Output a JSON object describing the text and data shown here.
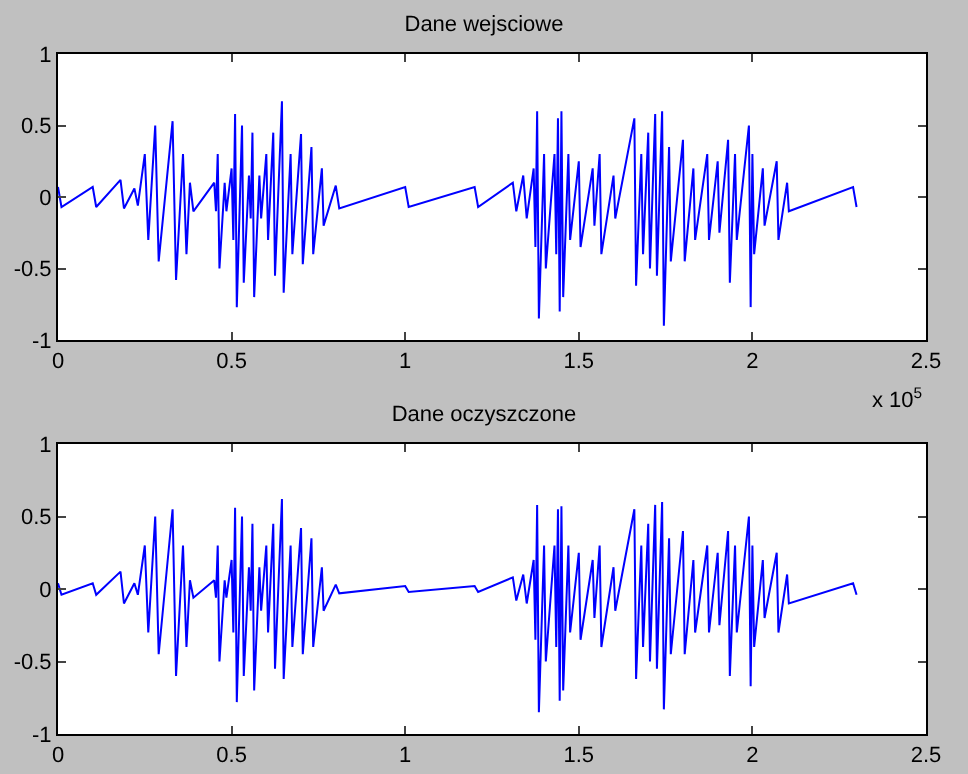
{
  "chart_data": [
    {
      "type": "line",
      "title": "Dane wejsciowe",
      "xlim": [
        0,
        2.5
      ],
      "xticks": [
        0,
        0.5,
        1,
        1.5,
        2,
        2.5
      ],
      "ylim": [
        -1,
        1
      ],
      "yticks": [
        -1,
        -0.5,
        0,
        0.5,
        1
      ],
      "annotations": [
        "x 10$^{5}$"
      ],
      "x": [
        0,
        0.01,
        0.1,
        0.11,
        0.18,
        0.19,
        0.22,
        0.23,
        0.25,
        0.26,
        0.28,
        0.29,
        0.33,
        0.34,
        0.36,
        0.37,
        0.38,
        0.39,
        0.45,
        0.455,
        0.46,
        0.465,
        0.48,
        0.485,
        0.5,
        0.505,
        0.51,
        0.515,
        0.53,
        0.535,
        0.55,
        0.555,
        0.56,
        0.565,
        0.58,
        0.585,
        0.6,
        0.605,
        0.62,
        0.625,
        0.645,
        0.65,
        0.67,
        0.675,
        0.7,
        0.705,
        0.73,
        0.735,
        0.76,
        0.765,
        0.8,
        0.81,
        1.0,
        1.01,
        1.2,
        1.21,
        1.31,
        1.32,
        1.34,
        1.35,
        1.37,
        1.375,
        1.38,
        1.385,
        1.4,
        1.405,
        1.43,
        1.435,
        1.44,
        1.445,
        1.45,
        1.455,
        1.47,
        1.475,
        1.5,
        1.505,
        1.54,
        1.545,
        1.56,
        1.565,
        1.6,
        1.605,
        1.66,
        1.665,
        1.68,
        1.685,
        1.7,
        1.705,
        1.72,
        1.725,
        1.74,
        1.745,
        1.76,
        1.765,
        1.8,
        1.805,
        1.83,
        1.835,
        1.87,
        1.875,
        1.9,
        1.905,
        1.93,
        1.935,
        1.95,
        1.955,
        1.99,
        1.995,
        2.0,
        2.005,
        2.03,
        2.035,
        2.07,
        2.075,
        2.1,
        2.105,
        2.29,
        2.3
      ],
      "series": [
        {
          "color": "#0000ff",
          "values": [
            0.07,
            -0.07,
            0.07,
            -0.07,
            0.12,
            -0.08,
            0.06,
            -0.06,
            0.3,
            -0.3,
            0.5,
            -0.45,
            0.53,
            -0.58,
            0.3,
            -0.4,
            0.1,
            -0.1,
            0.1,
            -0.1,
            0.3,
            -0.5,
            0.1,
            -0.1,
            0.2,
            -0.3,
            0.58,
            -0.77,
            0.5,
            -0.6,
            0.15,
            -0.15,
            0.45,
            -0.7,
            0.15,
            -0.15,
            0.3,
            -0.3,
            0.45,
            -0.55,
            0.67,
            -0.67,
            0.3,
            -0.4,
            0.44,
            -0.47,
            0.35,
            -0.4,
            0.2,
            -0.2,
            0.08,
            -0.08,
            0.07,
            -0.07,
            0.07,
            -0.07,
            0.1,
            -0.1,
            0.15,
            -0.15,
            0.2,
            -0.35,
            0.6,
            -0.85,
            0.3,
            -0.5,
            0.3,
            -0.4,
            0.55,
            -0.8,
            0.6,
            -0.7,
            0.3,
            -0.3,
            0.25,
            -0.35,
            0.2,
            -0.2,
            0.3,
            -0.4,
            0.15,
            -0.15,
            0.55,
            -0.62,
            0.3,
            -0.4,
            0.45,
            -0.5,
            0.58,
            -0.55,
            0.6,
            -0.9,
            0.35,
            -0.45,
            0.4,
            -0.45,
            0.2,
            -0.3,
            0.3,
            -0.3,
            0.25,
            -0.25,
            0.4,
            -0.6,
            0.3,
            -0.3,
            0.5,
            -0.77,
            0.3,
            -0.4,
            0.2,
            -0.2,
            0.25,
            -0.3,
            0.1,
            -0.1,
            0.07,
            -0.07
          ]
        }
      ]
    },
    {
      "type": "line",
      "title": "Dane oczyszczone",
      "xlim": [
        0,
        2.5
      ],
      "xticks": [
        0,
        0.5,
        1,
        1.5,
        2,
        2.5
      ],
      "ylim": [
        -1,
        1
      ],
      "yticks": [
        -1,
        -0.5,
        0,
        0.5,
        1
      ],
      "x": [
        0,
        0.01,
        0.1,
        0.11,
        0.18,
        0.19,
        0.22,
        0.23,
        0.25,
        0.26,
        0.28,
        0.29,
        0.33,
        0.34,
        0.36,
        0.37,
        0.38,
        0.39,
        0.45,
        0.455,
        0.46,
        0.465,
        0.48,
        0.485,
        0.5,
        0.505,
        0.51,
        0.515,
        0.53,
        0.535,
        0.55,
        0.555,
        0.56,
        0.565,
        0.58,
        0.585,
        0.6,
        0.605,
        0.62,
        0.625,
        0.645,
        0.65,
        0.67,
        0.675,
        0.7,
        0.705,
        0.73,
        0.735,
        0.76,
        0.765,
        0.8,
        0.81,
        1.0,
        1.01,
        1.2,
        1.21,
        1.31,
        1.32,
        1.34,
        1.35,
        1.37,
        1.375,
        1.38,
        1.385,
        1.4,
        1.405,
        1.43,
        1.435,
        1.44,
        1.445,
        1.45,
        1.455,
        1.47,
        1.475,
        1.5,
        1.505,
        1.54,
        1.545,
        1.56,
        1.565,
        1.6,
        1.605,
        1.66,
        1.665,
        1.68,
        1.685,
        1.7,
        1.705,
        1.72,
        1.725,
        1.74,
        1.745,
        1.76,
        1.765,
        1.8,
        1.805,
        1.83,
        1.835,
        1.87,
        1.875,
        1.9,
        1.905,
        1.93,
        1.935,
        1.95,
        1.955,
        1.99,
        1.995,
        2.0,
        2.005,
        2.03,
        2.035,
        2.07,
        2.075,
        2.1,
        2.105,
        2.29,
        2.3
      ],
      "series": [
        {
          "color": "#0000ff",
          "values": [
            0.04,
            -0.04,
            0.04,
            -0.04,
            0.12,
            -0.1,
            0.04,
            -0.04,
            0.3,
            -0.3,
            0.5,
            -0.45,
            0.55,
            -0.6,
            0.3,
            -0.4,
            0.06,
            -0.06,
            0.06,
            -0.06,
            0.3,
            -0.5,
            0.06,
            -0.06,
            0.2,
            -0.3,
            0.56,
            -0.78,
            0.5,
            -0.6,
            0.15,
            -0.15,
            0.45,
            -0.7,
            0.15,
            -0.15,
            0.3,
            -0.3,
            0.45,
            -0.55,
            0.62,
            -0.62,
            0.3,
            -0.4,
            0.42,
            -0.45,
            0.35,
            -0.4,
            0.15,
            -0.15,
            0.03,
            -0.03,
            0.02,
            -0.02,
            0.02,
            -0.02,
            0.08,
            -0.08,
            0.1,
            -0.1,
            0.2,
            -0.35,
            0.58,
            -0.85,
            0.3,
            -0.5,
            0.3,
            -0.4,
            0.55,
            -0.77,
            0.57,
            -0.7,
            0.3,
            -0.3,
            0.25,
            -0.35,
            0.2,
            -0.2,
            0.3,
            -0.4,
            0.15,
            -0.15,
            0.55,
            -0.62,
            0.3,
            -0.4,
            0.45,
            -0.5,
            0.58,
            -0.55,
            0.6,
            -0.83,
            0.35,
            -0.45,
            0.4,
            -0.45,
            0.2,
            -0.3,
            0.3,
            -0.3,
            0.25,
            -0.25,
            0.4,
            -0.6,
            0.3,
            -0.3,
            0.5,
            -0.67,
            0.3,
            -0.4,
            0.2,
            -0.2,
            0.25,
            -0.3,
            0.1,
            -0.1,
            0.04,
            -0.04
          ]
        }
      ]
    }
  ]
}
